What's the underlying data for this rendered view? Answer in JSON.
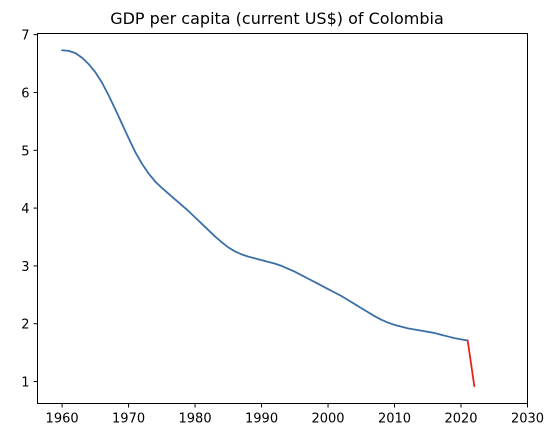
{
  "chart_data": {
    "type": "line",
    "title": "GDP per capita (current US$) of Colombia",
    "xlabel": "",
    "ylabel": "",
    "xlim": [
      1956.3,
      2030
    ],
    "ylim": [
      0.62,
      7.02
    ],
    "grid": false,
    "x_ticks": [
      1960,
      1970,
      1980,
      1990,
      2000,
      2010,
      2020,
      2030
    ],
    "y_ticks": [
      1,
      2,
      3,
      4,
      5,
      6,
      7
    ],
    "series": [
      {
        "color": "#3b6fa8",
        "x": [
          1960,
          1961,
          1962,
          1963,
          1964,
          1965,
          1966,
          1967,
          1968,
          1969,
          1970,
          1971,
          1972,
          1973,
          1974,
          1975,
          1976,
          1977,
          1978,
          1979,
          1980,
          1981,
          1982,
          1983,
          1984,
          1985,
          1986,
          1987,
          1988,
          1989,
          1990,
          1991,
          1992,
          1993,
          1994,
          1995,
          1996,
          1997,
          1998,
          1999,
          2000,
          2001,
          2002,
          2003,
          2004,
          2005,
          2006,
          2007,
          2008,
          2009,
          2010,
          2011,
          2012,
          2013,
          2014,
          2015,
          2016,
          2017,
          2018,
          2019,
          2020,
          2021
        ],
        "values": [
          6.73,
          6.72,
          6.68,
          6.6,
          6.49,
          6.35,
          6.17,
          5.95,
          5.71,
          5.46,
          5.21,
          4.97,
          4.77,
          4.6,
          4.46,
          4.35,
          4.25,
          4.15,
          4.05,
          3.95,
          3.84,
          3.73,
          3.62,
          3.51,
          3.41,
          3.32,
          3.25,
          3.2,
          3.16,
          3.13,
          3.1,
          3.07,
          3.04,
          3.0,
          2.95,
          2.9,
          2.84,
          2.78,
          2.72,
          2.66,
          2.6,
          2.54,
          2.48,
          2.41,
          2.34,
          2.27,
          2.2,
          2.13,
          2.07,
          2.02,
          1.98,
          1.95,
          1.92,
          1.9,
          1.88,
          1.86,
          1.84,
          1.81,
          1.78,
          1.75,
          1.73,
          1.71
        ]
      },
      {
        "color": "#e8231b",
        "x": [
          2021,
          2022
        ],
        "values": [
          1.71,
          0.92
        ]
      }
    ]
  }
}
